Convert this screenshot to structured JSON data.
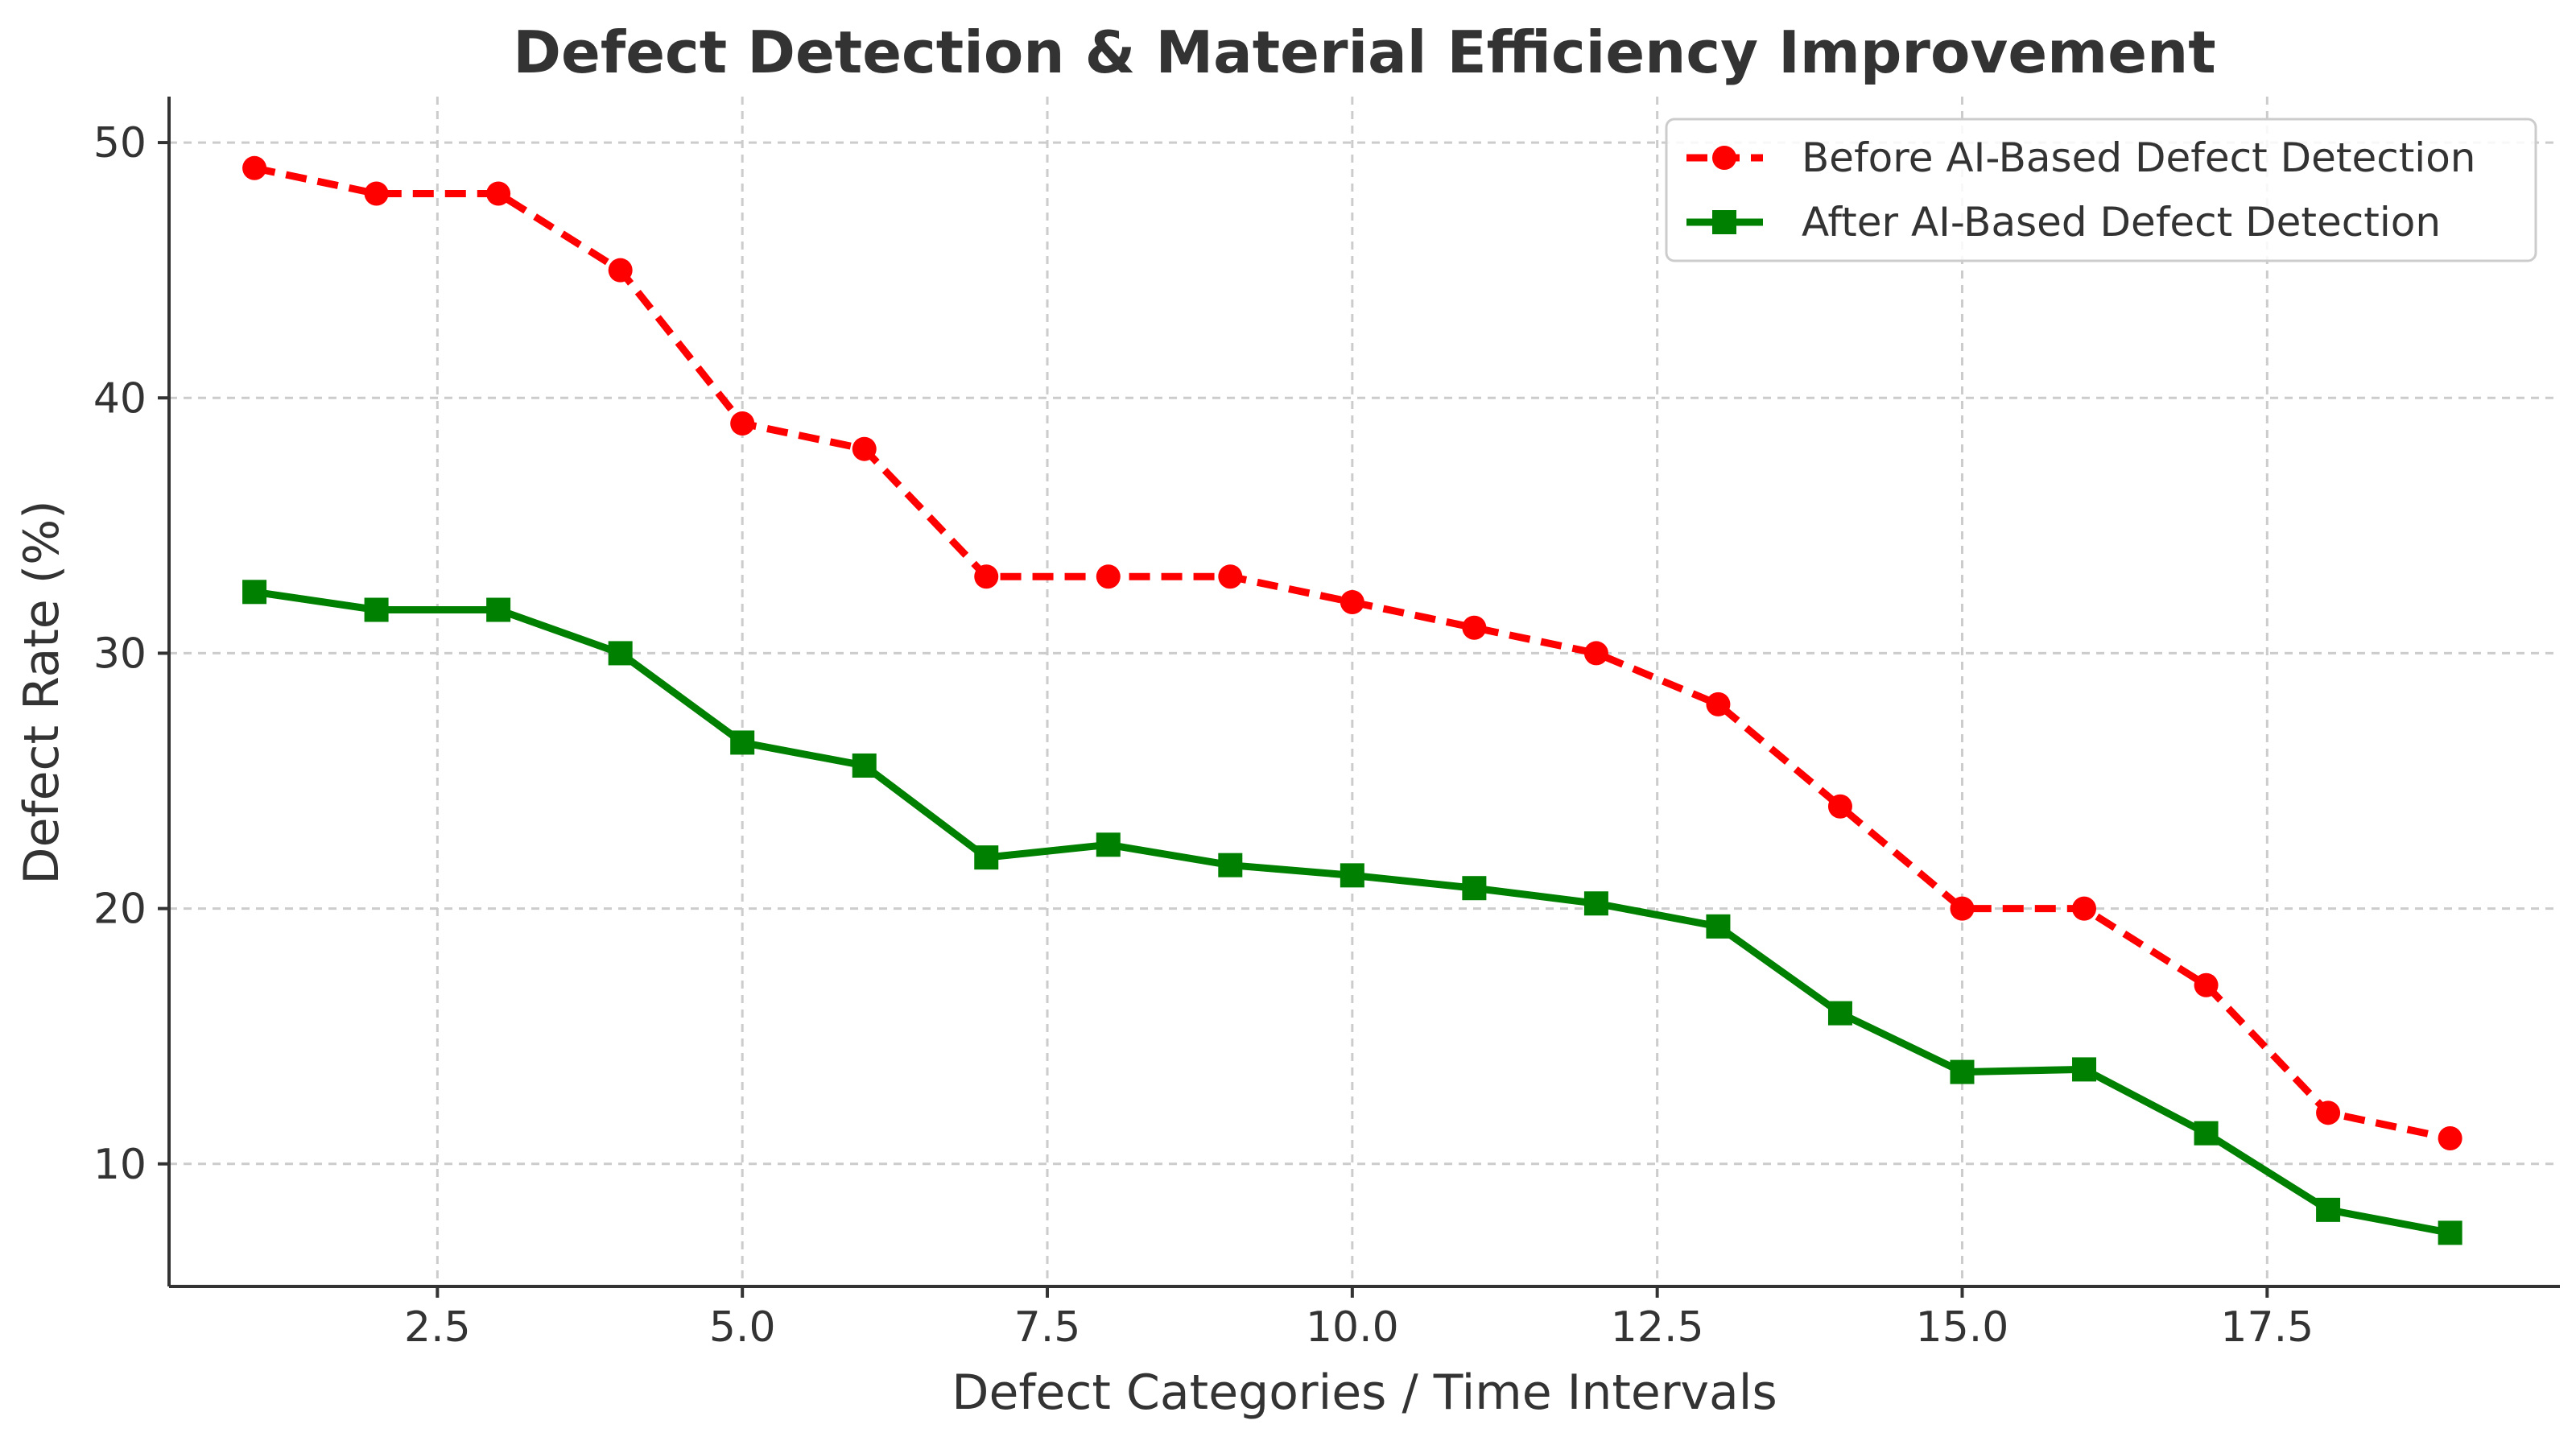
{
  "chart_data": {
    "type": "line",
    "title": "Defect Detection & Material Efficiency Improvement",
    "xlabel": "Defect Categories / Time Intervals",
    "ylabel": "Defect Rate (%)",
    "xlim": [
      0.3,
      19.9
    ],
    "ylim": [
      5.2,
      51.8
    ],
    "xticks": [
      2.5,
      5.0,
      7.5,
      10.0,
      12.5,
      15.0,
      17.5
    ],
    "xtick_labels": [
      "2.5",
      "5.0",
      "7.5",
      "10.0",
      "12.5",
      "15.0",
      "17.5"
    ],
    "yticks": [
      10,
      20,
      30,
      40,
      50
    ],
    "ytick_labels": [
      "10",
      "20",
      "30",
      "40",
      "50"
    ],
    "grid": true,
    "legend_position": "top-right",
    "x": [
      1,
      2,
      3,
      4,
      5,
      6,
      7,
      8,
      9,
      10,
      11,
      12,
      13,
      14,
      15,
      16,
      17,
      18,
      19
    ],
    "series": [
      {
        "name": "Before AI-Based Defect Detection",
        "color": "#ff0000",
        "line_style": "dashed",
        "marker": "circle",
        "values": [
          49,
          48,
          48,
          45,
          39,
          38,
          33,
          33,
          33,
          32,
          31,
          30,
          28,
          24,
          20,
          20,
          17,
          12,
          11
        ]
      },
      {
        "name": "After AI-Based Defect Detection",
        "color": "#008000",
        "line_style": "solid",
        "marker": "square",
        "values": [
          32.4,
          31.7,
          31.7,
          30.0,
          26.5,
          25.6,
          22.0,
          22.5,
          21.7,
          21.3,
          20.8,
          20.2,
          19.3,
          15.9,
          13.6,
          13.7,
          11.2,
          8.2,
          7.3
        ]
      }
    ]
  }
}
